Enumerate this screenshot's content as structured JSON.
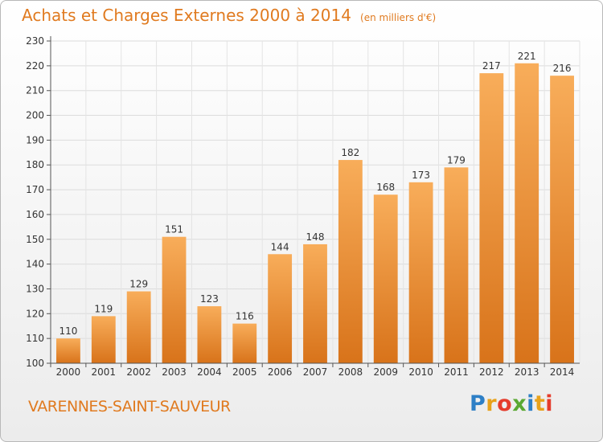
{
  "header": {
    "title": "Achats et Charges Externes 2000 à 2014",
    "subtitle": "(en milliers d'€)"
  },
  "footer": {
    "town": "VARENNES-SAINT-SAUVEUR",
    "logo_letters": [
      "P",
      "r",
      "o",
      "x",
      "i",
      "t",
      "i"
    ]
  },
  "colors": {
    "bar_light": "#f8ad5a",
    "bar_dark": "#d8731a",
    "title": "#e07a1f"
  },
  "chart_data": {
    "type": "bar",
    "title": "Achats et Charges Externes 2000 à 2014",
    "subtitle": "(en milliers d'€)",
    "categories": [
      "2000",
      "2001",
      "2002",
      "2003",
      "2004",
      "2005",
      "2006",
      "2007",
      "2008",
      "2009",
      "2010",
      "2011",
      "2012",
      "2013",
      "2014"
    ],
    "values": [
      110,
      119,
      129,
      151,
      123,
      116,
      144,
      148,
      182,
      168,
      173,
      179,
      217,
      221,
      216
    ],
    "ylim": [
      100,
      230
    ],
    "yticks": [
      100,
      110,
      120,
      130,
      140,
      150,
      160,
      170,
      180,
      190,
      200,
      210,
      220,
      230
    ],
    "grid": true,
    "legend": "none"
  }
}
